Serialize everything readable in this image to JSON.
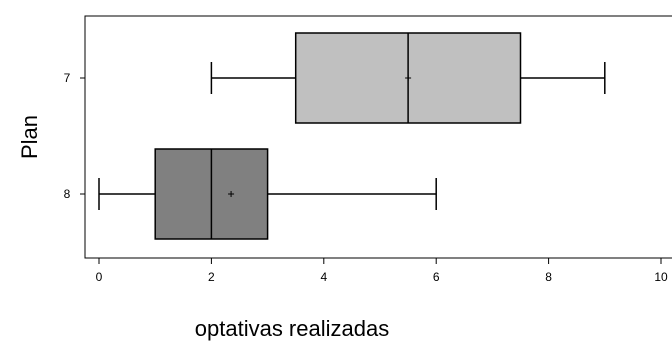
{
  "chart_data": {
    "type": "boxplot",
    "orientation": "horizontal",
    "title": "",
    "xlabel": "optativas realizadas",
    "ylabel": "Plan",
    "xlim": [
      0,
      10
    ],
    "x_ticks": [
      0,
      2,
      4,
      6,
      8,
      10
    ],
    "x_tick_labels": [
      "0",
      "2",
      "4",
      "6",
      "8",
      "10"
    ],
    "grid": false,
    "legend": "none",
    "categories": [
      "7",
      "8"
    ],
    "series": [
      {
        "category": "7",
        "min": 2,
        "q1": 3.5,
        "median": 5.5,
        "q3": 7.5,
        "max": 9,
        "mean": 5.5,
        "color": "#c0c0c0"
      },
      {
        "category": "8",
        "min": 0,
        "q1": 1,
        "median": 2,
        "q3": 3,
        "max": 6,
        "mean": 2.35,
        "color": "#808080"
      }
    ]
  }
}
